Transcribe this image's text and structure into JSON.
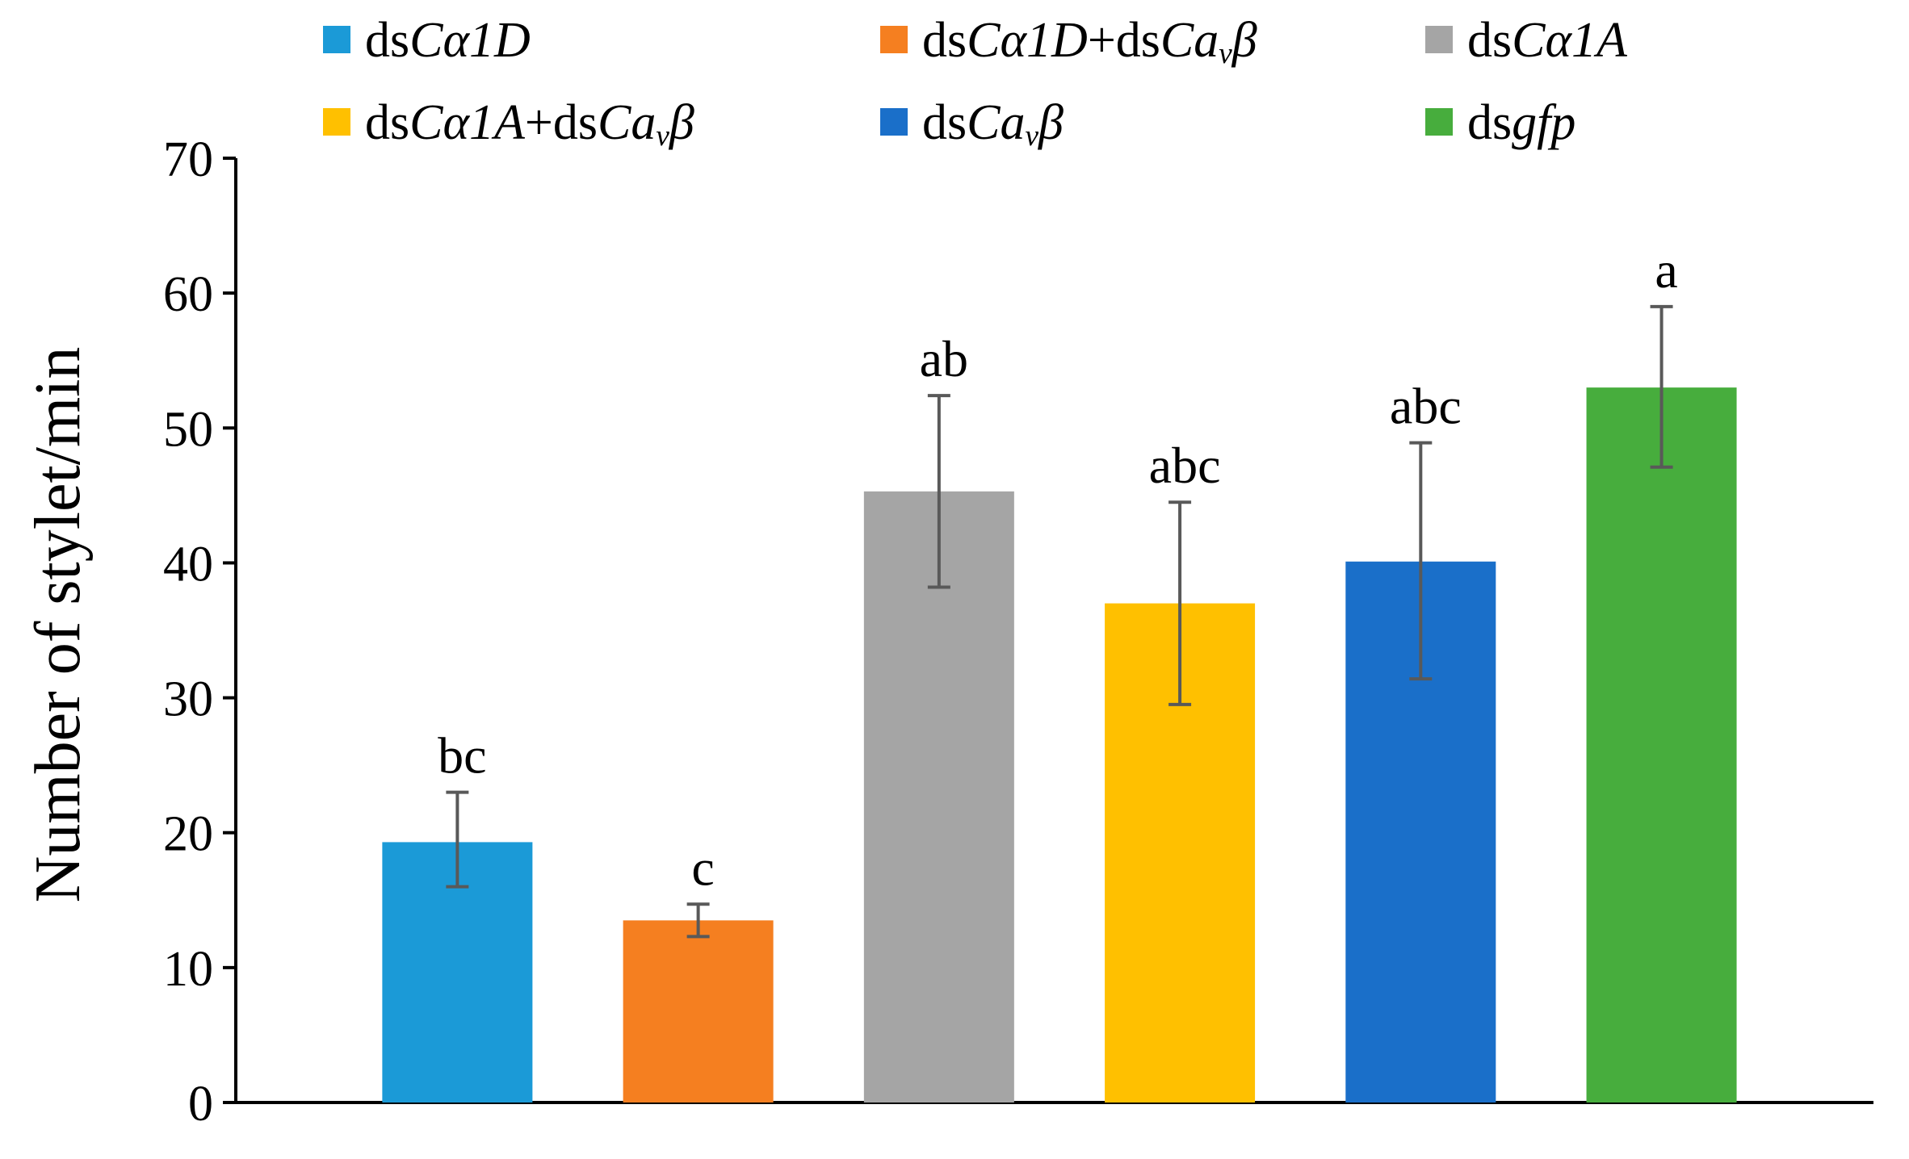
{
  "chart_data": {
    "type": "bar",
    "ylabel": "Number of stylet/min",
    "ylim": [
      0,
      70
    ],
    "yticks": [
      0,
      10,
      20,
      30,
      40,
      50,
      60,
      70
    ],
    "grid": false,
    "legend_position": "top",
    "series": [
      {
        "key": "ca1d",
        "legend": [
          {
            "t": "ds"
          },
          {
            "t": "Cα1D",
            "it": true
          }
        ],
        "value": 19.3,
        "err_low": 16.0,
        "err_high": 23.0,
        "letter": "bc",
        "color": "#1b9ad7"
      },
      {
        "key": "ca1d-cavb",
        "legend": [
          {
            "t": "ds"
          },
          {
            "t": "Cα1D",
            "it": true
          },
          {
            "t": "+ds"
          },
          {
            "t": "Ca",
            "it": true
          },
          {
            "t": "v",
            "it": true,
            "sub": true
          },
          {
            "t": "β",
            "it": true
          }
        ],
        "value": 13.5,
        "err_low": 12.3,
        "err_high": 14.7,
        "letter": "c",
        "color": "#f57f20"
      },
      {
        "key": "ca1a",
        "legend": [
          {
            "t": "ds"
          },
          {
            "t": "Cα1A",
            "it": true
          }
        ],
        "value": 45.3,
        "err_low": 38.2,
        "err_high": 52.4,
        "letter": "ab",
        "color": "#a5a5a5"
      },
      {
        "key": "ca1a-cavb",
        "legend": [
          {
            "t": "ds"
          },
          {
            "t": "Cα1A",
            "it": true
          },
          {
            "t": "+ds"
          },
          {
            "t": "Ca",
            "it": true
          },
          {
            "t": "v",
            "it": true,
            "sub": true
          },
          {
            "t": "β",
            "it": true
          }
        ],
        "value": 37.0,
        "err_low": 29.5,
        "err_high": 44.5,
        "letter": "abc",
        "color": "#ffc000"
      },
      {
        "key": "cavb",
        "legend": [
          {
            "t": "ds"
          },
          {
            "t": "Ca",
            "it": true
          },
          {
            "t": "v",
            "it": true,
            "sub": true
          },
          {
            "t": "β",
            "it": true
          }
        ],
        "value": 40.1,
        "err_low": 31.4,
        "err_high": 48.9,
        "letter": "abc",
        "color": "#1a6fc9"
      },
      {
        "key": "gfp",
        "legend": [
          {
            "t": "ds"
          },
          {
            "t": "gfp",
            "it": true
          }
        ],
        "value": 53.0,
        "err_low": 47.1,
        "err_high": 59.0,
        "letter": "a",
        "color": "#47ad3d"
      }
    ]
  }
}
